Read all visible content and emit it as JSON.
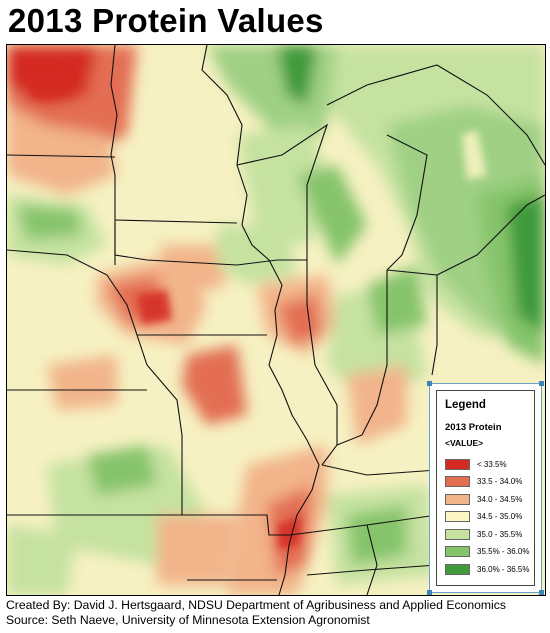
{
  "title": "2013 Protein Values",
  "legend": {
    "title": "Legend",
    "layer": "2013 Protein",
    "value_header": "<VALUE>",
    "classes": [
      {
        "label": "< 33.5%",
        "color": "#d42a22"
      },
      {
        "label": "33.5 - 34.0%",
        "color": "#e36e52"
      },
      {
        "label": "34.0 - 34.5%",
        "color": "#f2b48a"
      },
      {
        "label": "34.5 - 35.0%",
        "color": "#fbf6c4"
      },
      {
        "label": "35.0 - 35.5%",
        "color": "#c5e2a0"
      },
      {
        "label": "35.5% - 36.0%",
        "color": "#86c46c"
      },
      {
        "label": "36.0% - 36.5%",
        "color": "#3e9a3a"
      }
    ]
  },
  "credits": {
    "line1": "Created By: David J. Hertsgaard, NDSU Department of Agribusiness and Applied Economics",
    "line2": "Source: Seth Naeve, University of Minnesota Extension Agronomist"
  }
}
